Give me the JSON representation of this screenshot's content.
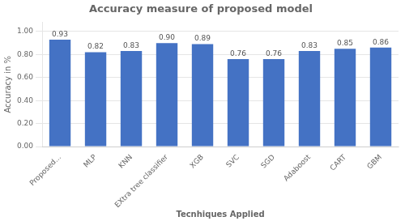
{
  "chart_data": {
    "type": "bar",
    "title": "Accuracy measure of proposed model",
    "xlabel": "Tecnhiques Applied",
    "ylabel": "Accuracy in %",
    "categories": [
      "Proposed...",
      "MLP",
      "KNN",
      "EXtra tree classifier",
      "XGB",
      "SVC",
      "SGD",
      "Adaboost",
      "CART",
      "GBM"
    ],
    "values": [
      0.93,
      0.82,
      0.83,
      0.9,
      0.89,
      0.76,
      0.76,
      0.83,
      0.85,
      0.86
    ],
    "value_labels": [
      "0.93",
      "0.82",
      "0.83",
      "0.90",
      "0.89",
      "0.76",
      "0.76",
      "0.83",
      "0.85",
      "0.86"
    ],
    "data_labels": true,
    "color": "#4472c4",
    "ylim": [
      0.0,
      1.08
    ],
    "yticks": [
      {
        "value": 0.0,
        "label": "0.00"
      },
      {
        "value": 0.2,
        "label": "0.20"
      },
      {
        "value": 0.4,
        "label": "0.40"
      },
      {
        "value": 0.6,
        "label": "0.60"
      },
      {
        "value": 0.8,
        "label": "0.80"
      },
      {
        "value": 1.0,
        "label": "1.00"
      }
    ],
    "grid": true
  }
}
